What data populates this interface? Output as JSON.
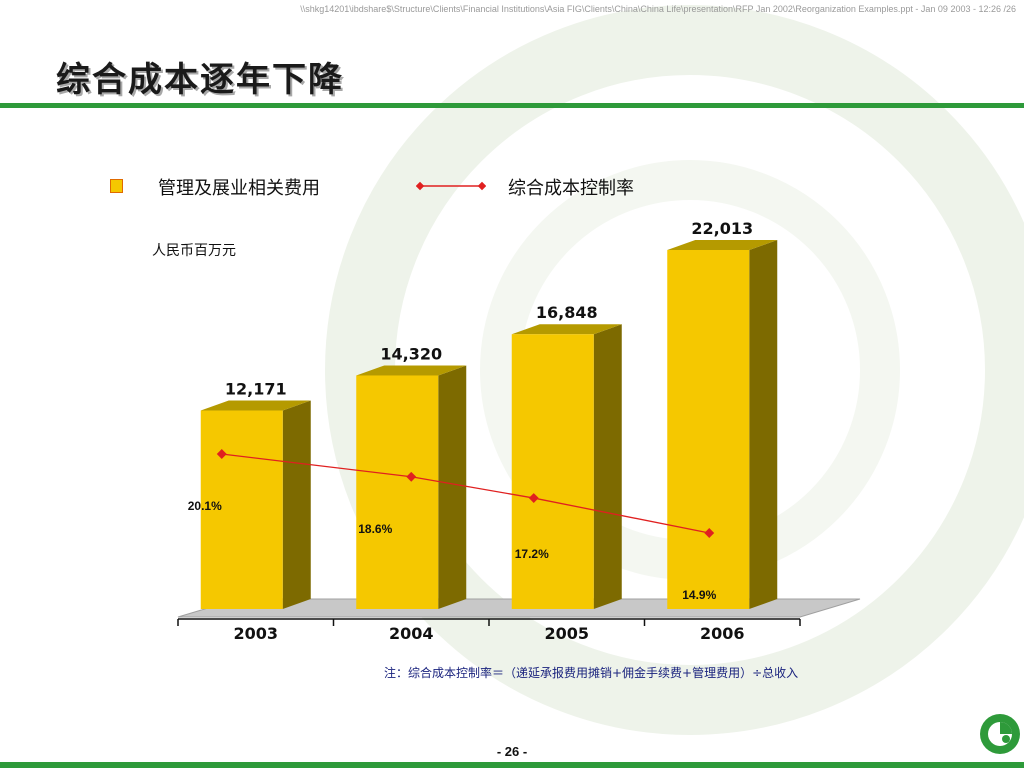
{
  "header": {
    "file_path": "\\\\shkg14201\\ibdshare$\\Structure\\Clients\\Financial Institutions\\Asia FIG\\Clients\\China\\China Life\\presentation\\RFP Jan 2002\\Reorganization Examples.ppt - Jan 09 2003 - 12:26 /26"
  },
  "slide": {
    "title": "综合成本逐年下降",
    "unit": "人民币百万元",
    "footnote": "注：综合成本控制率＝（递延承报费用摊销+佣金手续费+管理费用）÷总收入",
    "page_number": "- 26 -"
  },
  "colors": {
    "accent": "#2e9a3a",
    "bar_front": "#f5c800",
    "bar_side": "#7d6a00",
    "bar_top": "#b59a00",
    "line": "#e02020",
    "floor": "#c8c8c8"
  },
  "chart_data": {
    "type": "bar",
    "categories": [
      "2003",
      "2004",
      "2005",
      "2006"
    ],
    "series": [
      {
        "name": "管理及展业相关费用",
        "type": "bar",
        "values": [
          12171,
          14320,
          16848,
          22013
        ],
        "labels": [
          "12,171",
          "14,320",
          "16,848",
          "22,013"
        ]
      },
      {
        "name": "综合成本控制率",
        "type": "line",
        "values": [
          20.1,
          18.6,
          17.2,
          14.9
        ],
        "labels": [
          "20.1%",
          "18.6%",
          "17.2%",
          "14.9%"
        ]
      }
    ],
    "title": "",
    "xlabel": "",
    "ylabel": "人民币百万元",
    "legend_position": "top-left",
    "grid": false
  }
}
